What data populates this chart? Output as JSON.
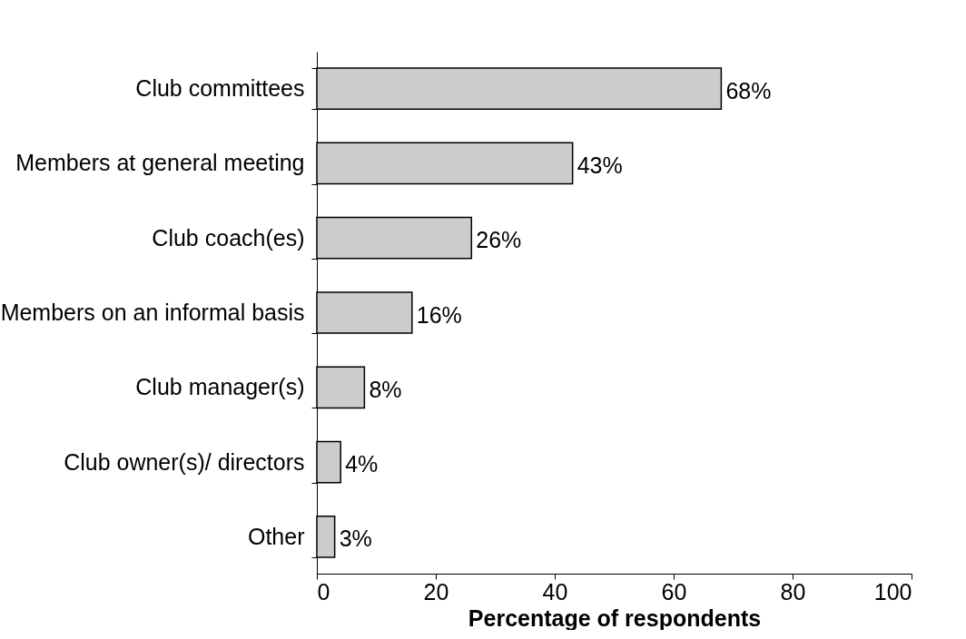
{
  "chart_data": {
    "type": "bar",
    "orientation": "horizontal",
    "xlabel": "Percentage of respondents",
    "categories": [
      "Club committees",
      "Members at general meeting",
      "Club coach(es)",
      "Members on an informal basis",
      "Club manager(s)",
      "Club owner(s)/ directors",
      "Other"
    ],
    "values": [
      68,
      43,
      26,
      16,
      8,
      4,
      3
    ],
    "value_labels": [
      "68%",
      "43%",
      "26%",
      "16%",
      "8%",
      "4%",
      "3%"
    ],
    "color": "#cccccc",
    "xlim": [
      0,
      100
    ],
    "xticks": [
      0,
      20,
      40,
      60,
      80,
      100
    ],
    "grid": false
  }
}
